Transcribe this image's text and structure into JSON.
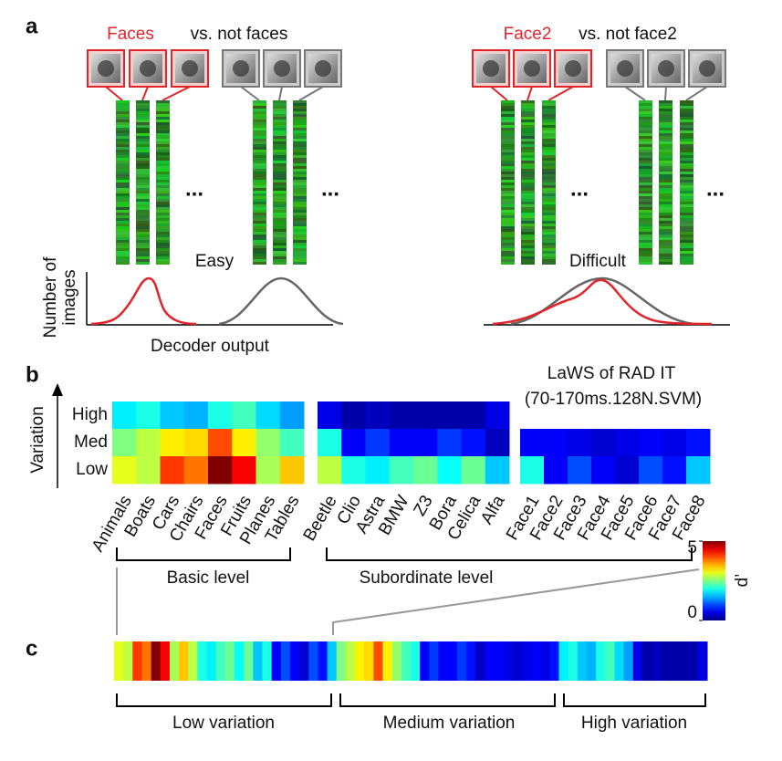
{
  "panel_a": {
    "label": "a",
    "left": {
      "target": "Faces",
      "versus": "vs. not faces",
      "difficulty": "Easy"
    },
    "right": {
      "target": "Face2",
      "versus": "vs. not face2",
      "difficulty": "Difficult"
    },
    "ellipsis": "...",
    "y_label": [
      "Number of",
      "images"
    ],
    "x_label": "Decoder output"
  },
  "panel_b": {
    "label": "b",
    "title": "LaWS of RAD IT",
    "subtitle": "(70-170ms.128N.SVM)",
    "axis_label": "Variation",
    "row_labels": [
      "High",
      "Med",
      "Low"
    ],
    "groups": [
      {
        "label": "Basic level",
        "categories": [
          "Animals",
          "Boats",
          "Cars",
          "Chairs",
          "Faces",
          "Fruits",
          "Planes",
          "Tables"
        ],
        "values": [
          [
            1.8,
            2.0,
            1.6,
            1.5,
            2.0,
            2.2,
            1.7,
            1.4
          ],
          [
            2.5,
            2.8,
            3.2,
            3.3,
            4.0,
            3.2,
            2.6,
            2.2
          ],
          [
            3.0,
            2.8,
            4.1,
            3.8,
            5.0,
            4.4,
            2.7,
            3.4
          ]
        ]
      },
      {
        "label": "Subordinate level",
        "categories": [
          "Beetle",
          "Clio",
          "Astra",
          "BMW",
          "Z3",
          "Bora",
          "Celica",
          "Alfa"
        ],
        "values": [
          [
            0.5,
            0.2,
            0.3,
            0.2,
            0.2,
            0.2,
            0.2,
            0.5
          ],
          [
            2.0,
            0.6,
            0.9,
            0.6,
            0.6,
            0.9,
            0.7,
            0.3
          ],
          [
            2.8,
            2.0,
            1.8,
            2.2,
            2.4,
            1.9,
            2.4,
            1.6
          ]
        ]
      },
      {
        "categories": [
          "Face1",
          "Face2",
          "Face3",
          "Face4",
          "Face5",
          "Face6",
          "Face7",
          "Face8"
        ],
        "values": [
          null,
          [
            0.6,
            0.6,
            0.5,
            0.4,
            0.5,
            0.6,
            0.5,
            0.7
          ],
          [
            2.0,
            0.6,
            1.0,
            0.6,
            0.4,
            1.0,
            0.7,
            1.6
          ]
        ]
      }
    ],
    "colorbar": {
      "label": "d’",
      "clim": [
        0,
        5
      ],
      "ticks": [
        0,
        5
      ]
    }
  },
  "panel_c": {
    "label": "c",
    "segments": [
      "Low variation",
      "Medium variation",
      "High variation"
    ]
  }
}
